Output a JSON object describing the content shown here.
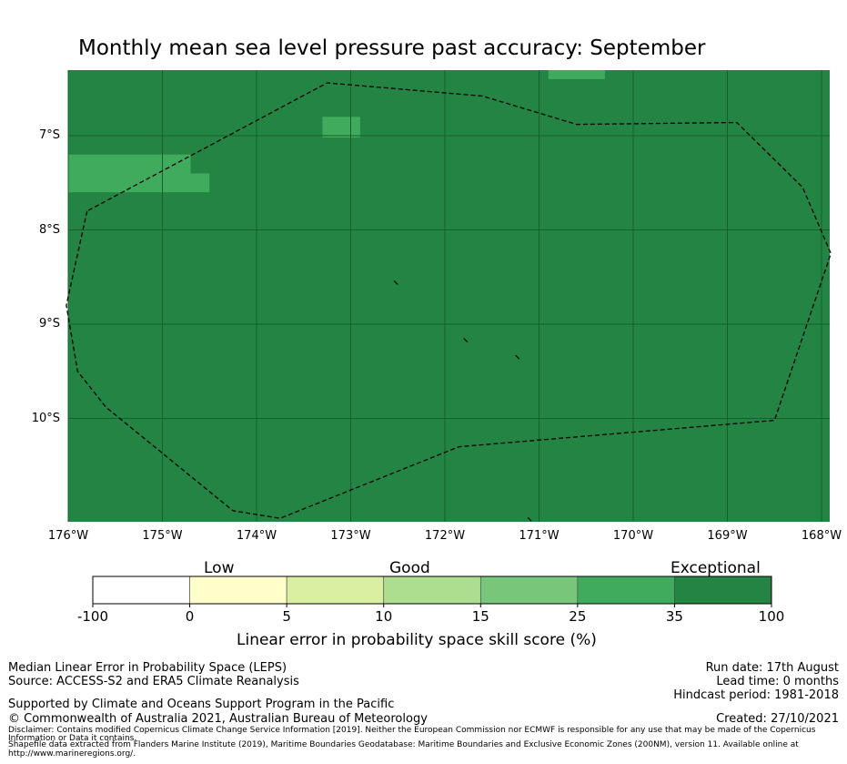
{
  "chart_data": {
    "type": "heatmap",
    "title": "Monthly mean sea level pressure past accuracy: September",
    "x_ticks": [
      {
        "lon": -176,
        "label": "176°W"
      },
      {
        "lon": -175,
        "label": "175°W"
      },
      {
        "lon": -174,
        "label": "174°W"
      },
      {
        "lon": -173,
        "label": "173°W"
      },
      {
        "lon": -172,
        "label": "172°W"
      },
      {
        "lon": -171,
        "label": "171°W"
      },
      {
        "lon": -170,
        "label": "170°W"
      },
      {
        "lon": -169,
        "label": "169°W"
      },
      {
        "lon": -168,
        "label": "168°W"
      }
    ],
    "y_ticks": [
      {
        "lat": -7,
        "label": "7°S"
      },
      {
        "lat": -8,
        "label": "8°S"
      },
      {
        "lat": -9,
        "label": "9°S"
      },
      {
        "lat": -10,
        "label": "10°S"
      }
    ],
    "xlim": [
      -176,
      -168
    ],
    "ylim": [
      -11.1,
      -6.3
    ],
    "grid": true,
    "background_category": "35-100",
    "cells": [
      {
        "lon": [
          -176,
          -174.7
        ],
        "lat": [
          -7.6,
          -7.2
        ],
        "category": "25-35"
      },
      {
        "lon": [
          -174.7,
          -174.5
        ],
        "lat": [
          -7.6,
          -7.4
        ],
        "category": "25-35"
      },
      {
        "lon": [
          -173.3,
          -172.9
        ],
        "lat": [
          -7.02,
          -6.8
        ],
        "category": "25-35"
      },
      {
        "lon": [
          -170.9,
          -170.3
        ],
        "lat": [
          -6.4,
          -6.3
        ],
        "category": "25-35"
      }
    ],
    "eez_boundary": [
      [
        -175.8,
        -7.8
      ],
      [
        -176.02,
        -8.8
      ],
      [
        -175.9,
        -9.5
      ],
      [
        -175.6,
        -9.88
      ],
      [
        -174.25,
        -10.98
      ],
      [
        -173.75,
        -11.06
      ],
      [
        -171.85,
        -10.3
      ],
      [
        -168.5,
        -10.02
      ],
      [
        -167.9,
        -8.25
      ],
      [
        -168.2,
        -7.55
      ],
      [
        -168.9,
        -6.86
      ],
      [
        -170.6,
        -6.88
      ],
      [
        -171.6,
        -6.58
      ],
      [
        -173.25,
        -6.44
      ],
      [
        -175.8,
        -7.8
      ]
    ],
    "islands": [
      {
        "lon": -172.52,
        "lat": -8.56
      },
      {
        "lon": -171.78,
        "lat": -9.17
      },
      {
        "lon": -171.23,
        "lat": -9.35
      },
      {
        "lon": -171.1,
        "lat": -11.07
      }
    ],
    "colorbar": {
      "categories": [
        "Low",
        "Good",
        "Exceptional"
      ],
      "ticks": [
        "-100",
        "0",
        "5",
        "10",
        "15",
        "25",
        "35",
        "100"
      ],
      "colors": [
        "#ffffff",
        "#ffffcc",
        "#d9f0a3",
        "#addd8e",
        "#78c679",
        "#41ab5d",
        "#238443"
      ],
      "label": "Linear error in probability space skill score (%)"
    },
    "colors": {
      "25-35": "#41ab5d",
      "35-100": "#238443",
      "grid": "#14602c",
      "boundary": "#000000"
    }
  },
  "footer": {
    "left": [
      "Median Linear Error in Probability Space (LEPS)",
      "Source: ACCESS-S2 and ERA5 Climate Reanalysis"
    ],
    "support": "Supported by Climate and Oceans Support Program in the Pacific",
    "copyright": "© Commonwealth of Australia 2021, Australian Bureau of Meteorology",
    "disclaimer_1": "Disclaimer: Contains modified Copernicus Climate Change Service Information [2019]. Neither the European Commission nor ECMWF is responsible for any use that may be made of the Copernicus",
    "disclaimer_2": "Information or Data it contains.",
    "shapefile_1": "Shapefile data extracted from Flanders Marine Institute (2019), Maritime Boundaries Geodatabase: Maritime Boundaries and Exclusive Economic Zones (200NM), version 11. Available online at",
    "shapefile_2": "http://www.marineregions.org/.",
    "run_date": "Run date: 17th August",
    "lead_time": "Lead time: 0 months",
    "hindcast": "Hindcast period: 1981-2018",
    "created": "Created: 27/10/2021"
  }
}
